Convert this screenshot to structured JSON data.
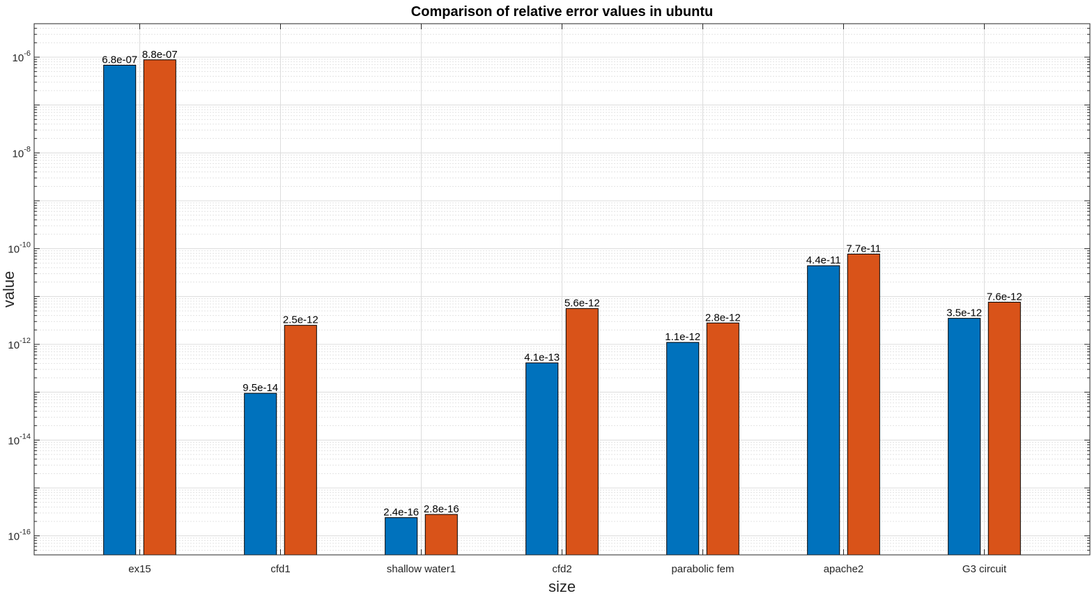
{
  "chart_data": {
    "type": "bar",
    "title": "Comparison of relative error values in ubuntu",
    "xlabel": "size",
    "ylabel": "value",
    "yscale": "log",
    "ylim": [
      4e-17,
      5e-06
    ],
    "grid": true,
    "categories": [
      "ex15",
      "cfd1",
      "shallow water1",
      "cfd2",
      "parabolic fem",
      "apache2",
      "G3 circuit"
    ],
    "series": [
      {
        "color": "#0072BD",
        "values": [
          6.8e-07,
          9.5e-14,
          2.4e-16,
          4.1e-13,
          1.1e-12,
          4.4e-11,
          3.5e-12
        ],
        "labels": [
          "6.8e-07",
          "9.5e-14",
          "2.4e-16",
          "4.1e-13",
          "1.1e-12",
          "4.4e-11",
          "3.5e-12"
        ]
      },
      {
        "color": "#D95319",
        "values": [
          8.8e-07,
          2.5e-12,
          2.8e-16,
          5.6e-12,
          2.8e-12,
          7.7e-11,
          7.6e-12
        ],
        "labels": [
          "8.8e-07",
          "2.5e-12",
          "2.8e-16",
          "5.6e-12",
          "2.8e-12",
          "7.7e-11",
          "7.6e-12"
        ]
      }
    ],
    "yticks": [
      {
        "value": 1e-16,
        "exponent": "-16"
      },
      {
        "value": 1e-14,
        "exponent": "-14"
      },
      {
        "value": 1e-12,
        "exponent": "-12"
      },
      {
        "value": 1e-10,
        "exponent": "-10"
      },
      {
        "value": 1e-08,
        "exponent": "-8"
      },
      {
        "value": 1e-06,
        "exponent": "-6"
      }
    ],
    "ytick_base": "10"
  }
}
